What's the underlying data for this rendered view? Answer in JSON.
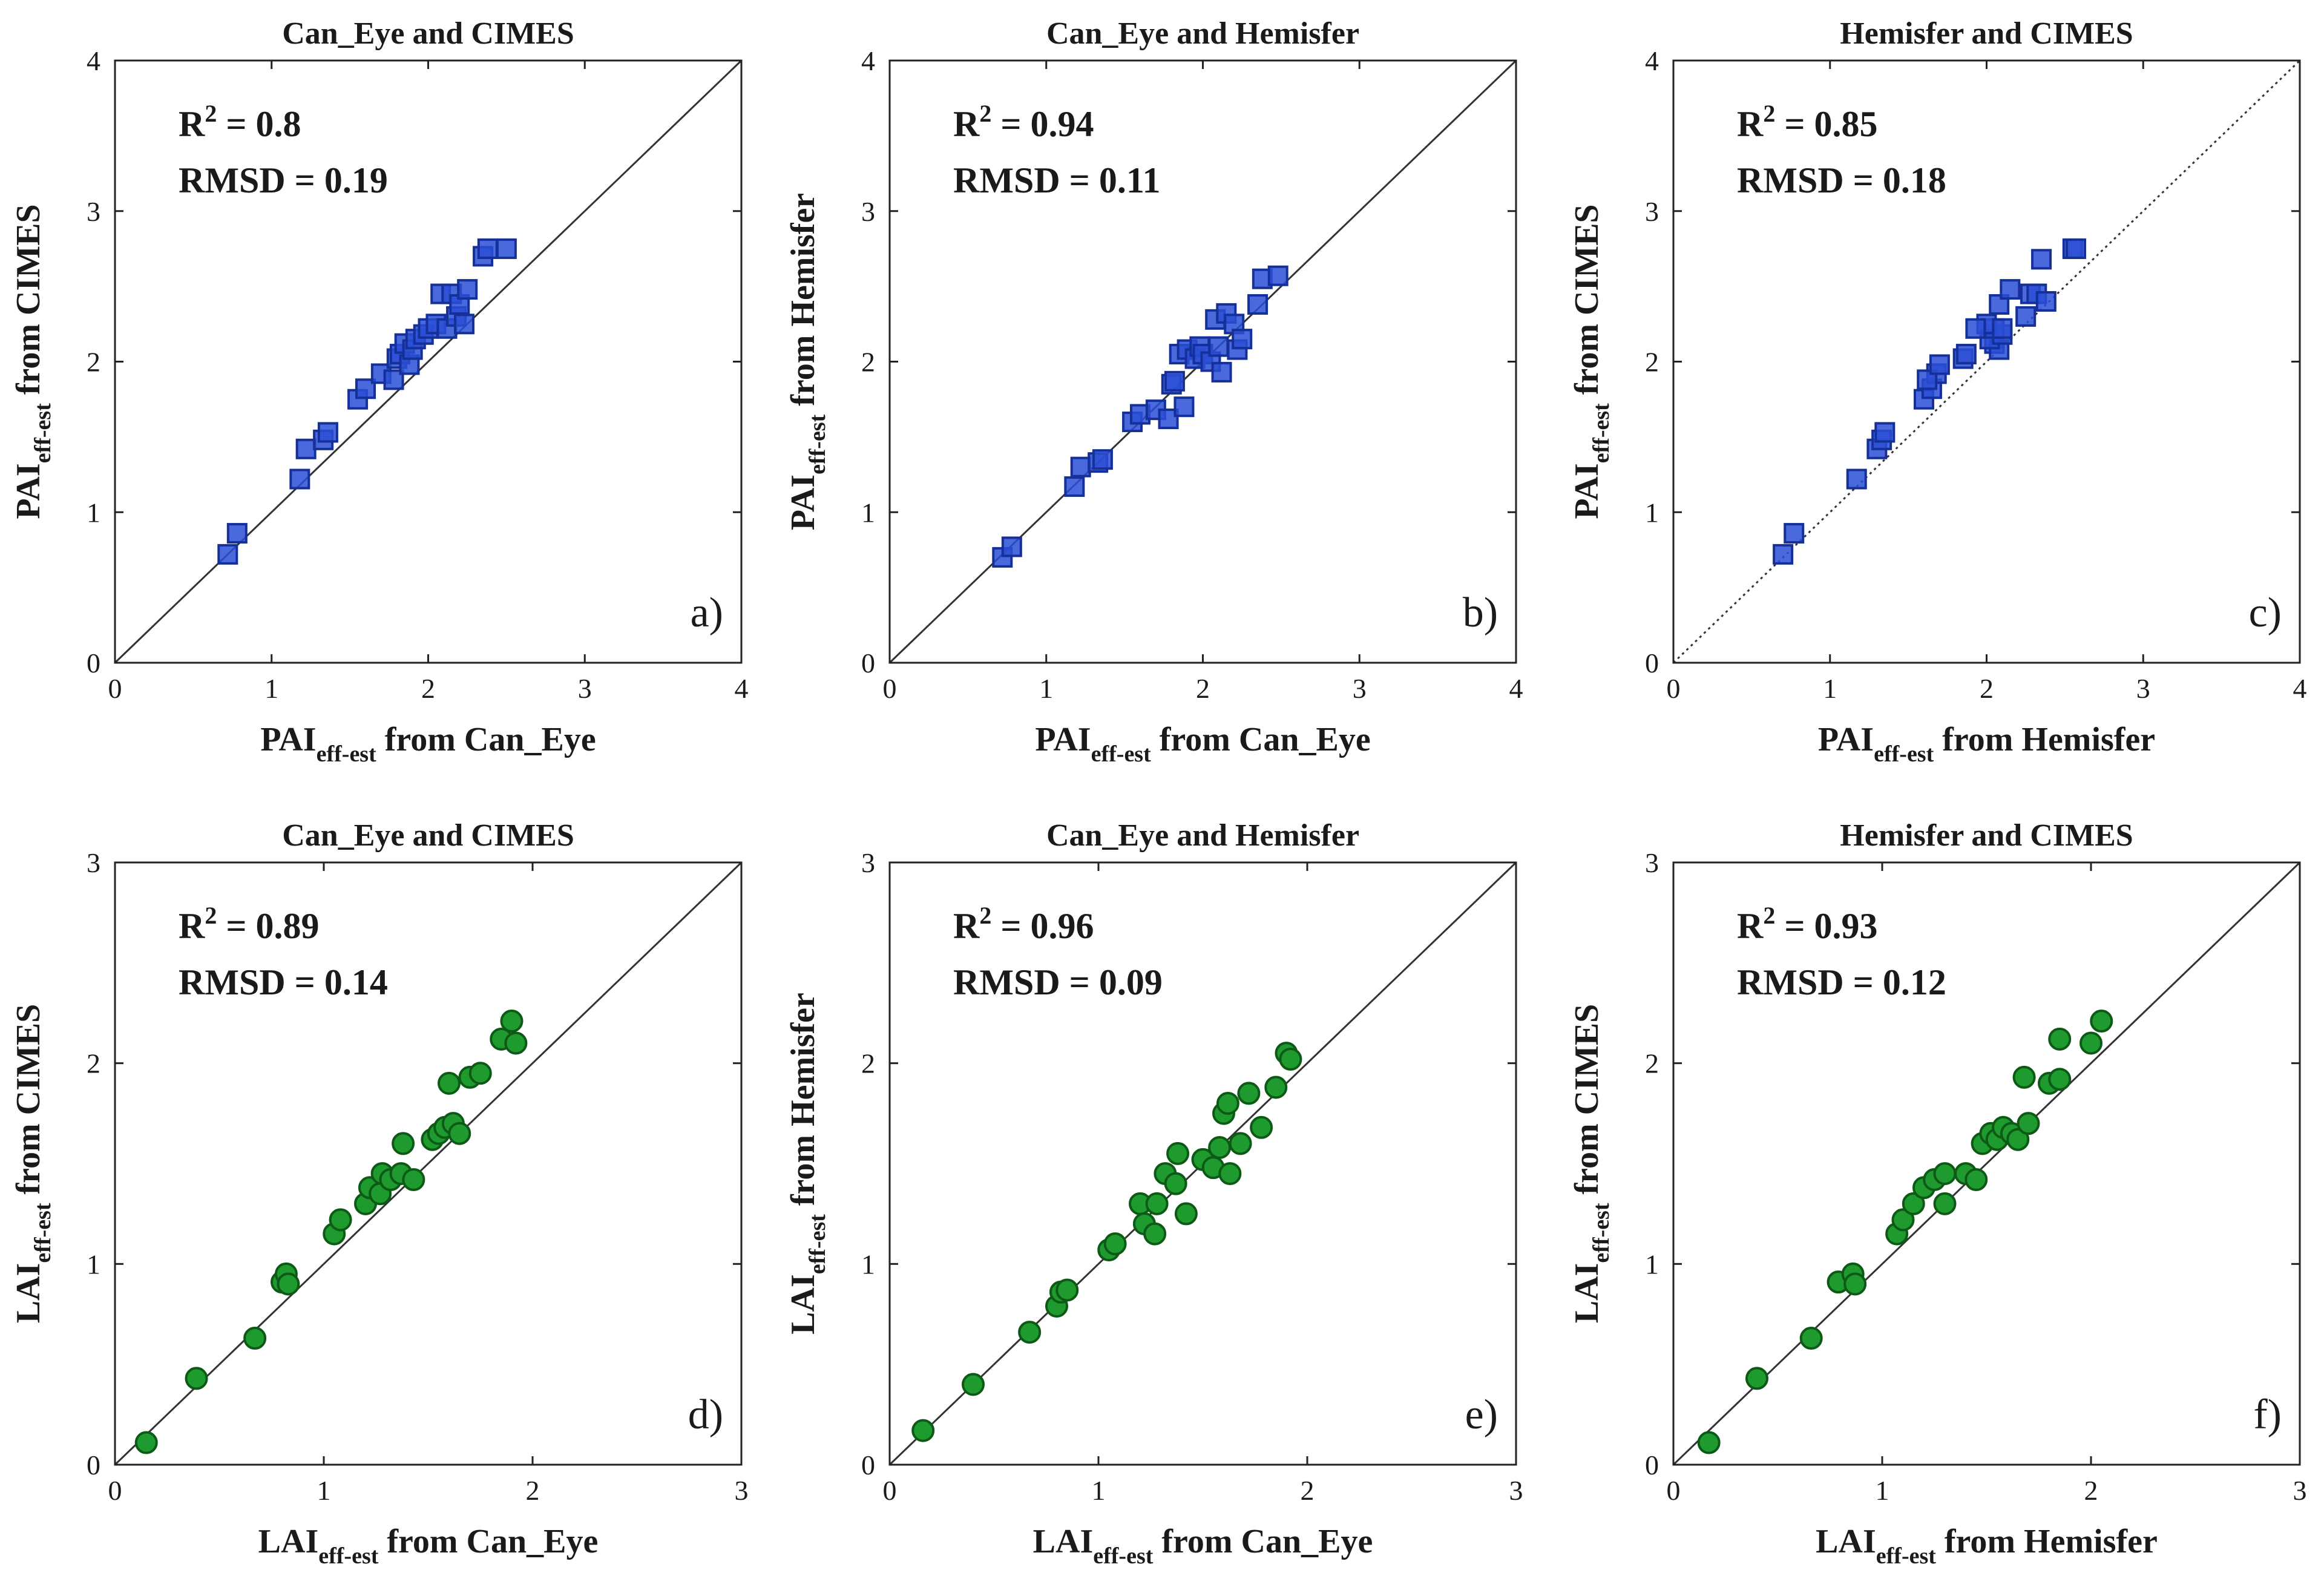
{
  "chart_data": [
    {
      "type": "scatter",
      "title": "Can_Eye and CIMES",
      "panel_label": "a)",
      "xlabel": {
        "main": "PAI",
        "sub": "eff-est",
        "rest": " from Can_Eye"
      },
      "ylabel": {
        "main": "PAI",
        "sub": "eff-est",
        "rest": " from CIMES"
      },
      "r2": "0.8",
      "rmsd_label": "RMSD = 0.19",
      "xlim": [
        0,
        4
      ],
      "ylim": [
        0,
        4
      ],
      "xticks": [
        "0",
        "1",
        "2",
        "3",
        "4"
      ],
      "yticks": [
        "0",
        "1",
        "2",
        "3",
        "4"
      ],
      "marker": "square",
      "color": "#2a4fd6",
      "line_style": "solid",
      "points": [
        [
          0.72,
          0.72
        ],
        [
          0.78,
          0.86
        ],
        [
          1.18,
          1.22
        ],
        [
          1.22,
          1.42
        ],
        [
          1.33,
          1.48
        ],
        [
          1.36,
          1.53
        ],
        [
          1.55,
          1.75
        ],
        [
          1.6,
          1.82
        ],
        [
          1.7,
          1.92
        ],
        [
          1.78,
          1.88
        ],
        [
          1.8,
          2.02
        ],
        [
          1.82,
          2.05
        ],
        [
          1.85,
          2.12
        ],
        [
          1.88,
          1.98
        ],
        [
          1.9,
          2.08
        ],
        [
          1.92,
          2.15
        ],
        [
          1.97,
          2.18
        ],
        [
          2.0,
          2.22
        ],
        [
          2.05,
          2.25
        ],
        [
          2.08,
          2.45
        ],
        [
          2.12,
          2.22
        ],
        [
          2.15,
          2.45
        ],
        [
          2.18,
          2.3
        ],
        [
          2.2,
          2.38
        ],
        [
          2.23,
          2.25
        ],
        [
          2.25,
          2.48
        ],
        [
          2.35,
          2.7
        ],
        [
          2.38,
          2.75
        ],
        [
          2.5,
          2.75
        ]
      ]
    },
    {
      "type": "scatter",
      "title": "Can_Eye and Hemisfer",
      "panel_label": "b)",
      "xlabel": {
        "main": "PAI",
        "sub": "eff-est",
        "rest": " from Can_Eye"
      },
      "ylabel": {
        "main": "PAI",
        "sub": "eff-est",
        "rest": " from Hemisfer"
      },
      "r2": "0.94",
      "rmsd_label": "RMSD = 0.11",
      "xlim": [
        0,
        4
      ],
      "ylim": [
        0,
        4
      ],
      "xticks": [
        "0",
        "1",
        "2",
        "3",
        "4"
      ],
      "yticks": [
        "0",
        "1",
        "2",
        "3",
        "4"
      ],
      "marker": "square",
      "color": "#2a4fd6",
      "line_style": "solid",
      "points": [
        [
          0.72,
          0.7
        ],
        [
          0.78,
          0.77
        ],
        [
          1.18,
          1.17
        ],
        [
          1.22,
          1.3
        ],
        [
          1.33,
          1.33
        ],
        [
          1.36,
          1.35
        ],
        [
          1.55,
          1.6
        ],
        [
          1.6,
          1.65
        ],
        [
          1.7,
          1.68
        ],
        [
          1.78,
          1.62
        ],
        [
          1.8,
          1.85
        ],
        [
          1.82,
          1.87
        ],
        [
          1.85,
          2.05
        ],
        [
          1.88,
          1.7
        ],
        [
          1.9,
          2.08
        ],
        [
          1.95,
          2.02
        ],
        [
          1.98,
          2.1
        ],
        [
          2.0,
          2.05
        ],
        [
          2.05,
          2.0
        ],
        [
          2.08,
          2.28
        ],
        [
          2.1,
          2.1
        ],
        [
          2.12,
          1.93
        ],
        [
          2.15,
          2.32
        ],
        [
          2.2,
          2.25
        ],
        [
          2.22,
          2.08
        ],
        [
          2.25,
          2.15
        ],
        [
          2.35,
          2.38
        ],
        [
          2.38,
          2.55
        ],
        [
          2.48,
          2.57
        ]
      ]
    },
    {
      "type": "scatter",
      "title": "Hemisfer and CIMES",
      "panel_label": "c)",
      "xlabel": {
        "main": "PAI",
        "sub": "eff-est",
        "rest": " from Hemisfer"
      },
      "ylabel": {
        "main": "PAI",
        "sub": "eff-est",
        "rest": " from CIMES"
      },
      "r2": "0.85",
      "rmsd_label": "RMSD = 0.18",
      "xlim": [
        0,
        4
      ],
      "ylim": [
        0,
        4
      ],
      "xticks": [
        "0",
        "1",
        "2",
        "3",
        "4"
      ],
      "yticks": [
        "0",
        "1",
        "2",
        "3",
        "4"
      ],
      "marker": "square",
      "color": "#2a4fd6",
      "line_style": "dotted",
      "points": [
        [
          0.7,
          0.72
        ],
        [
          0.77,
          0.86
        ],
        [
          1.17,
          1.22
        ],
        [
          1.3,
          1.42
        ],
        [
          1.33,
          1.48
        ],
        [
          1.35,
          1.53
        ],
        [
          1.6,
          1.75
        ],
        [
          1.65,
          1.82
        ],
        [
          1.68,
          1.92
        ],
        [
          1.62,
          1.88
        ],
        [
          1.85,
          2.02
        ],
        [
          1.87,
          2.05
        ],
        [
          2.05,
          2.12
        ],
        [
          1.7,
          1.98
        ],
        [
          2.08,
          2.08
        ],
        [
          2.02,
          2.15
        ],
        [
          2.1,
          2.18
        ],
        [
          2.05,
          2.22
        ],
        [
          2.0,
          2.25
        ],
        [
          2.28,
          2.45
        ],
        [
          2.1,
          2.22
        ],
        [
          1.93,
          2.22
        ],
        [
          2.32,
          2.45
        ],
        [
          2.25,
          2.3
        ],
        [
          2.08,
          2.38
        ],
        [
          2.15,
          2.48
        ],
        [
          2.38,
          2.4
        ],
        [
          2.55,
          2.75
        ],
        [
          2.57,
          2.75
        ],
        [
          2.35,
          2.68
        ]
      ]
    },
    {
      "type": "scatter",
      "title": "Can_Eye and CIMES",
      "panel_label": "d)",
      "xlabel": {
        "main": "LAI",
        "sub": "eff-est",
        "rest": " from Can_Eye"
      },
      "ylabel": {
        "main": "LAI",
        "sub": "eff-est",
        "rest": " from CIMES"
      },
      "r2": "0.89",
      "rmsd_label": "RMSD = 0.14",
      "xlim": [
        0,
        3
      ],
      "ylim": [
        0,
        3
      ],
      "xticks": [
        "0",
        "1",
        "2",
        "3"
      ],
      "yticks": [
        "0",
        "1",
        "2",
        "3"
      ],
      "marker": "circle",
      "color": "#1f9a2e",
      "line_style": "solid",
      "points": [
        [
          0.15,
          0.11
        ],
        [
          0.39,
          0.43
        ],
        [
          0.67,
          0.63
        ],
        [
          0.8,
          0.91
        ],
        [
          0.82,
          0.95
        ],
        [
          0.83,
          0.9
        ],
        [
          1.05,
          1.15
        ],
        [
          1.08,
          1.22
        ],
        [
          1.2,
          1.3
        ],
        [
          1.22,
          1.38
        ],
        [
          1.27,
          1.35
        ],
        [
          1.28,
          1.45
        ],
        [
          1.32,
          1.42
        ],
        [
          1.37,
          1.45
        ],
        [
          1.38,
          1.6
        ],
        [
          1.43,
          1.42
        ],
        [
          1.52,
          1.62
        ],
        [
          1.55,
          1.65
        ],
        [
          1.58,
          1.68
        ],
        [
          1.62,
          1.7
        ],
        [
          1.65,
          1.65
        ],
        [
          1.6,
          1.9
        ],
        [
          1.7,
          1.93
        ],
        [
          1.75,
          1.95
        ],
        [
          1.85,
          2.12
        ],
        [
          1.9,
          2.21
        ],
        [
          1.92,
          2.1
        ]
      ]
    },
    {
      "type": "scatter",
      "title": "Can_Eye and Hemisfer",
      "panel_label": "e)",
      "xlabel": {
        "main": "LAI",
        "sub": "eff-est",
        "rest": " from Can_Eye"
      },
      "ylabel": {
        "main": "LAI",
        "sub": "eff-est",
        "rest": " from Hemisfer"
      },
      "r2": "0.96",
      "rmsd_label": "RMSD = 0.09",
      "xlim": [
        0,
        3
      ],
      "ylim": [
        0,
        3
      ],
      "xticks": [
        "0",
        "1",
        "2",
        "3"
      ],
      "yticks": [
        "0",
        "1",
        "2",
        "3"
      ],
      "marker": "circle",
      "color": "#1f9a2e",
      "line_style": "solid",
      "points": [
        [
          0.16,
          0.17
        ],
        [
          0.4,
          0.4
        ],
        [
          0.67,
          0.66
        ],
        [
          0.8,
          0.79
        ],
        [
          0.82,
          0.86
        ],
        [
          0.85,
          0.87
        ],
        [
          1.05,
          1.07
        ],
        [
          1.08,
          1.1
        ],
        [
          1.2,
          1.3
        ],
        [
          1.22,
          1.2
        ],
        [
          1.27,
          1.15
        ],
        [
          1.28,
          1.3
        ],
        [
          1.32,
          1.45
        ],
        [
          1.37,
          1.4
        ],
        [
          1.38,
          1.55
        ],
        [
          1.42,
          1.25
        ],
        [
          1.5,
          1.52
        ],
        [
          1.55,
          1.48
        ],
        [
          1.58,
          1.58
        ],
        [
          1.6,
          1.75
        ],
        [
          1.62,
          1.8
        ],
        [
          1.63,
          1.45
        ],
        [
          1.68,
          1.6
        ],
        [
          1.72,
          1.85
        ],
        [
          1.78,
          1.68
        ],
        [
          1.85,
          1.88
        ],
        [
          1.9,
          2.05
        ],
        [
          1.92,
          2.02
        ]
      ]
    },
    {
      "type": "scatter",
      "title": "Hemisfer and CIMES",
      "panel_label": "f)",
      "xlabel": {
        "main": "LAI",
        "sub": "eff-est",
        "rest": " from Hemisfer"
      },
      "ylabel": {
        "main": "LAI",
        "sub": "eff-est",
        "rest": " from CIMES"
      },
      "r2": "0.93",
      "rmsd_label": "RMSD = 0.12",
      "xlim": [
        0,
        3
      ],
      "ylim": [
        0,
        3
      ],
      "xticks": [
        "0",
        "1",
        "2",
        "3"
      ],
      "yticks": [
        "0",
        "1",
        "2",
        "3"
      ],
      "marker": "circle",
      "color": "#1f9a2e",
      "line_style": "solid",
      "points": [
        [
          0.17,
          0.11
        ],
        [
          0.4,
          0.43
        ],
        [
          0.66,
          0.63
        ],
        [
          0.79,
          0.91
        ],
        [
          0.86,
          0.95
        ],
        [
          0.87,
          0.9
        ],
        [
          1.07,
          1.15
        ],
        [
          1.1,
          1.22
        ],
        [
          1.15,
          1.3
        ],
        [
          1.2,
          1.38
        ],
        [
          1.25,
          1.42
        ],
        [
          1.3,
          1.45
        ],
        [
          1.3,
          1.3
        ],
        [
          1.4,
          1.45
        ],
        [
          1.45,
          1.42
        ],
        [
          1.48,
          1.6
        ],
        [
          1.52,
          1.65
        ],
        [
          1.55,
          1.62
        ],
        [
          1.58,
          1.68
        ],
        [
          1.62,
          1.65
        ],
        [
          1.65,
          1.62
        ],
        [
          1.7,
          1.7
        ],
        [
          1.68,
          1.93
        ],
        [
          1.8,
          1.9
        ],
        [
          1.85,
          1.92
        ],
        [
          1.85,
          2.12
        ],
        [
          2.0,
          2.1
        ],
        [
          2.05,
          2.21
        ]
      ]
    }
  ]
}
